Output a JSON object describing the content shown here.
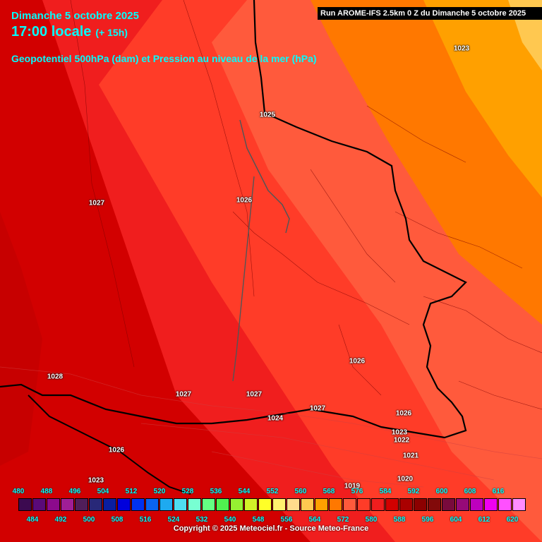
{
  "header": {
    "date": "Dimanche 5 octobre 2025",
    "time": "17:00 locale",
    "lead": "(+ 15h)",
    "parameter": "Geopotentiel 500hPa (dam) et Pression au niveau de la mer (hPa)",
    "run": "Run AROME-IFS 2.5km 0 Z du Dimanche 5 octobre 2025"
  },
  "pressure_labels": [
    "1023",
    "1025",
    "1027",
    "1026",
    "1028",
    "1027",
    "1027",
    "1027",
    "1026",
    "1026",
    "1024",
    "1023",
    "1022",
    "1021",
    "1026",
    "1023",
    "1020",
    "1019"
  ],
  "legend": {
    "top_labels": [
      "480",
      "488",
      "496",
      "504",
      "512",
      "520",
      "528",
      "536",
      "544",
      "552",
      "560",
      "568",
      "576",
      "584",
      "592",
      "600",
      "608",
      "616"
    ],
    "bottom_labels": [
      "484",
      "492",
      "500",
      "508",
      "516",
      "524",
      "532",
      "540",
      "548",
      "556",
      "564",
      "572",
      "580",
      "588",
      "596",
      "604",
      "612",
      "620"
    ],
    "colors": [
      "#3c0a50",
      "#5a0a78",
      "#8c0a8c",
      "#a01e96",
      "#501e5a",
      "#282878",
      "#0a1ea0",
      "#0000dc",
      "#0032f0",
      "#0a64f0",
      "#1eaaf0",
      "#50dcf0",
      "#78ffd2",
      "#64ff82",
      "#50f050",
      "#96f032",
      "#d2f028",
      "#ffff28",
      "#fff06e",
      "#ffdc8c",
      "#ffc850",
      "#ffa000",
      "#ff7800",
      "#ff5a3c",
      "#ff3c28",
      "#f01e1e",
      "#d20000",
      "#aa0000",
      "#8c0000",
      "#820a0a",
      "#780a3c",
      "#960a78",
      "#be00be",
      "#f000f0",
      "#ff50ff",
      "#ff8cff"
    ]
  },
  "map_colors": {
    "c568": "#ffa000",
    "c572": "#ff7800",
    "c576": "#ff5a3c",
    "c580": "#ff3c28",
    "c584": "#f01e1e",
    "c588": "#d20000",
    "c592": "#aa0000"
  },
  "copyright": "Copyright © 2025 Meteociel.fr - Source Meteo-France"
}
